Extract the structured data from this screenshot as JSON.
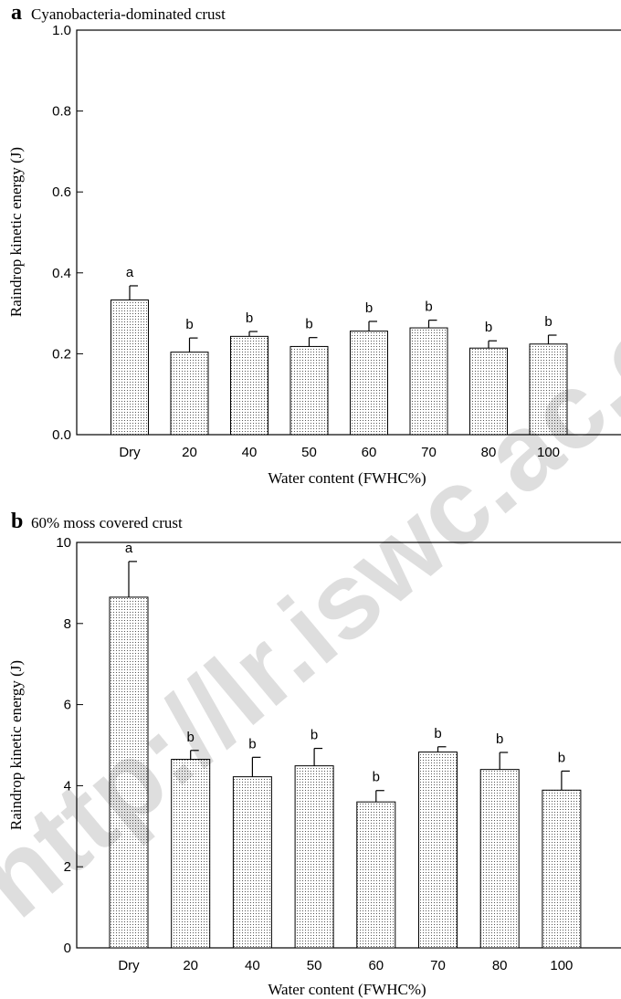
{
  "watermark": "http://lr.iswc.ac.cn",
  "chart_data": [
    {
      "panel": "a",
      "title": "Cyanobacteria-dominated crust",
      "type": "bar",
      "xlabel": "Water content (FWHC%)",
      "ylabel": "Raindrop kinetic energy (J)",
      "categories": [
        "Dry",
        "20",
        "40",
        "50",
        "60",
        "70",
        "80",
        "100"
      ],
      "values": [
        0.333,
        0.204,
        0.243,
        0.218,
        0.256,
        0.264,
        0.214,
        0.224
      ],
      "errors": [
        0.035,
        0.035,
        0.012,
        0.022,
        0.024,
        0.019,
        0.018,
        0.022
      ],
      "significance": [
        "a",
        "b",
        "b",
        "b",
        "b",
        "b",
        "b",
        "b"
      ],
      "ylim": [
        0,
        1.0
      ],
      "yticks": [
        0.0,
        0.2,
        0.4,
        0.6,
        0.8,
        1.0
      ],
      "ytick_labels": [
        "0.0",
        "0.2",
        "0.4",
        "0.6",
        "0.8",
        "1.0"
      ],
      "grid": false
    },
    {
      "panel": "b",
      "title": "60% moss covered crust",
      "type": "bar",
      "xlabel": "Water content (FWHC%)",
      "ylabel": "Raindrop kinetic energy (J)",
      "categories": [
        "Dry",
        "20",
        "40",
        "50",
        "60",
        "70",
        "80",
        "100"
      ],
      "values": [
        8.65,
        4.65,
        4.22,
        4.49,
        3.6,
        4.83,
        4.4,
        3.89
      ],
      "errors": [
        0.88,
        0.22,
        0.48,
        0.43,
        0.28,
        0.13,
        0.42,
        0.47
      ],
      "significance": [
        "a",
        "b",
        "b",
        "b",
        "b",
        "b",
        "b",
        "b"
      ],
      "ylim": [
        0,
        10
      ],
      "yticks": [
        0,
        2,
        4,
        6,
        8,
        10
      ],
      "ytick_labels": [
        "0",
        "2",
        "4",
        "6",
        "8",
        "10"
      ],
      "grid": false
    }
  ]
}
